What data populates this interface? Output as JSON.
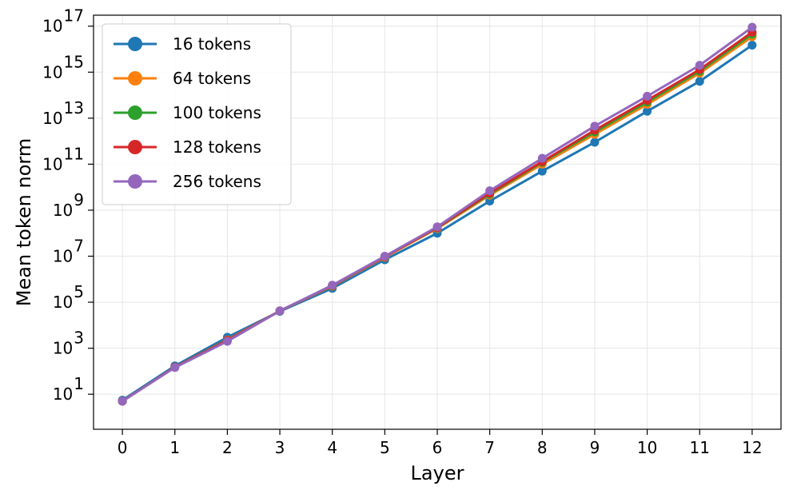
{
  "chart_data": {
    "type": "line",
    "title": "",
    "xlabel": "Layer",
    "ylabel": "Mean token norm",
    "yscale": "log",
    "grid": true,
    "legend_position": "top-left",
    "xlim": [
      -0.55,
      12.55
    ],
    "ylim": [
      0.3,
      3e+17
    ],
    "x": [
      0,
      1,
      2,
      3,
      4,
      5,
      6,
      7,
      8,
      9,
      10,
      11,
      12
    ],
    "xticks": [
      "0",
      "1",
      "2",
      "3",
      "4",
      "5",
      "6",
      "7",
      "8",
      "9",
      "10",
      "11",
      "12"
    ],
    "yticks": [
      {
        "value": 10,
        "base": "10",
        "exp": "1"
      },
      {
        "value": 1000,
        "base": "10",
        "exp": "3"
      },
      {
        "value": 100000,
        "base": "10",
        "exp": "5"
      },
      {
        "value": 10000000,
        "base": "10",
        "exp": "7"
      },
      {
        "value": 1000000000,
        "base": "10",
        "exp": "9"
      },
      {
        "value": 100000000000,
        "base": "10",
        "exp": "11"
      },
      {
        "value": 10000000000000,
        "base": "10",
        "exp": "13"
      },
      {
        "value": 1000000000000000,
        "base": "10",
        "exp": "15"
      },
      {
        "value": 100000000000000000,
        "base": "10",
        "exp": "17"
      }
    ],
    "series": [
      {
        "name": "16 tokens",
        "color": "#1f77b4",
        "values": [
          5.5,
          170,
          3000,
          40000,
          400000,
          7000000,
          100000000,
          2500000000,
          50000000000,
          900000000000,
          20000000000000,
          400000000000000,
          15000000000000000
        ]
      },
      {
        "name": "64 tokens",
        "color": "#ff7f0e",
        "values": [
          5,
          150,
          2300,
          42000,
          500000,
          9000000,
          160000000,
          4500000000,
          100000000000,
          2000000000000,
          40000000000000,
          900000000000000,
          35000000000000000
        ]
      },
      {
        "name": "100 tokens",
        "color": "#2ca02c",
        "values": [
          5,
          150,
          2200,
          42000,
          520000,
          9500000,
          170000000,
          5000000000,
          120000000000,
          2500000000000,
          50000000000000,
          1100000000000000,
          45000000000000000
        ]
      },
      {
        "name": "128 tokens",
        "color": "#d62728",
        "values": [
          5,
          150,
          2200,
          42000,
          530000,
          9500000,
          175000000,
          5500000000,
          130000000000,
          3000000000000,
          60000000000000,
          1300000000000000,
          55000000000000000
        ]
      },
      {
        "name": "256 tokens",
        "color": "#9467bd",
        "values": [
          5,
          145,
          2000,
          42000,
          550000,
          10000000,
          190000000,
          7000000000,
          180000000000,
          4500000000000,
          90000000000000,
          2000000000000000,
          90000000000000000
        ]
      }
    ]
  }
}
